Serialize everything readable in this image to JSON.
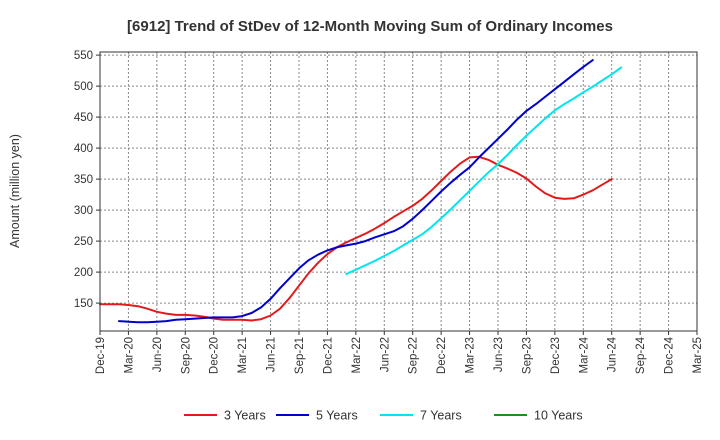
{
  "chart_data": {
    "type": "line",
    "title": "[6912]  Trend of StDev of 12-Month Moving Sum of Ordinary Incomes",
    "xlabel": "",
    "ylabel": "Amount (million yen)",
    "ylim": [
      105,
      555
    ],
    "yticks": [
      150,
      200,
      250,
      300,
      350,
      400,
      450,
      500,
      550
    ],
    "xticks": [
      "Dec-19",
      "Mar-20",
      "Jun-20",
      "Sep-20",
      "Dec-20",
      "Mar-21",
      "Jun-21",
      "Sep-21",
      "Dec-21",
      "Mar-22",
      "Jun-22",
      "Sep-22",
      "Dec-22",
      "Mar-23",
      "Jun-23",
      "Sep-23",
      "Dec-23",
      "Mar-24",
      "Jun-24",
      "Sep-24",
      "Dec-24",
      "Mar-25"
    ],
    "grid": true,
    "legend_position": "bottom",
    "series": [
      {
        "name": "3 Years",
        "color": "#e31a1c",
        "start_index": 0,
        "values": [
          148,
          148,
          148,
          147,
          145,
          141,
          136,
          133,
          131,
          131,
          130,
          128,
          125,
          123,
          123,
          123,
          122,
          124,
          130,
          141,
          158,
          178,
          198,
          215,
          229,
          240,
          248,
          255,
          262,
          270,
          279,
          289,
          298,
          307,
          318,
          332,
          347,
          362,
          375,
          385,
          386,
          381,
          373,
          367,
          360,
          351,
          338,
          327,
          320,
          318,
          319,
          325,
          332,
          341,
          350
        ]
      },
      {
        "name": "5 Years",
        "color": "#0000cd",
        "start_index": 2,
        "values": [
          121,
          120,
          119,
          119,
          120,
          121,
          123,
          124,
          125,
          126,
          127,
          127,
          127,
          129,
          134,
          143,
          157,
          174,
          190,
          206,
          219,
          228,
          235,
          240,
          243,
          246,
          250,
          256,
          261,
          266,
          274,
          286,
          300,
          315,
          330,
          344,
          357,
          369,
          385,
          400,
          415,
          430,
          446,
          460,
          471,
          483,
          495,
          507,
          519,
          531,
          542
        ]
      },
      {
        "name": "7 Years",
        "color": "#00e5ee",
        "start_index": 26,
        "values": [
          197,
          204,
          211,
          218,
          226,
          234,
          243,
          252,
          261,
          273,
          287,
          301,
          316,
          331,
          346,
          361,
          374,
          389,
          405,
          420,
          434,
          448,
          461,
          471,
          480,
          490,
          499,
          509,
          519,
          530
        ]
      },
      {
        "name": "10 Years",
        "color": "#228b22",
        "start_index": 0,
        "values": []
      }
    ]
  }
}
